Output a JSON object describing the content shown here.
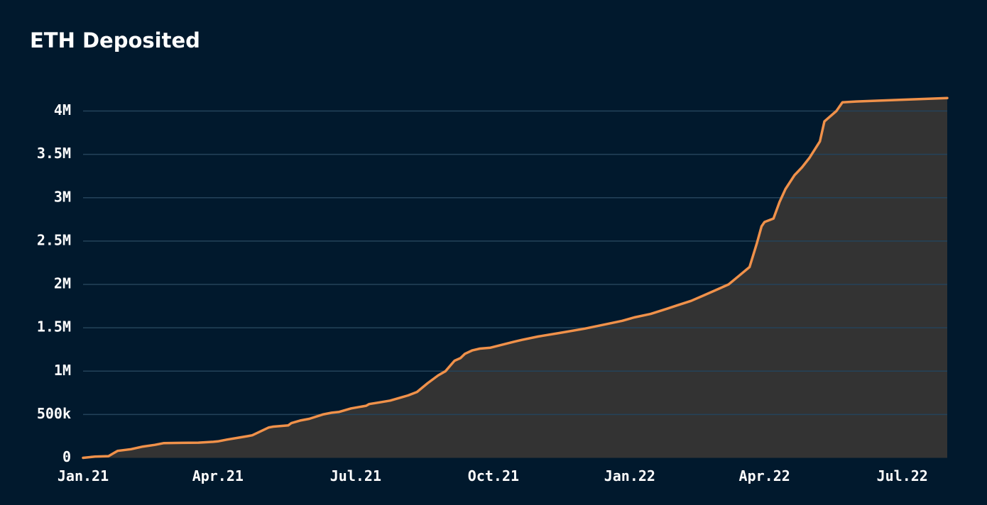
{
  "colors": {
    "background": "#01192d",
    "grid": "#24435a",
    "line": "#f0914a",
    "area": "#333333",
    "text": "#ffffff"
  },
  "chart_data": {
    "type": "area",
    "title": "ETH Deposited",
    "xlabel": "",
    "ylabel": "",
    "grid": true,
    "legend": "none",
    "xlim": [
      "2020-12-01",
      "2022-07-01"
    ],
    "ylim": [
      0,
      4000000
    ],
    "x_ticks": [
      {
        "date": "2020-12-01",
        "label": "Jan.21"
      },
      {
        "date": "2021-03-01",
        "label": "Apr.21"
      },
      {
        "date": "2021-06-01",
        "label": "Jul.21"
      },
      {
        "date": "2021-09-01",
        "label": "Oct.21"
      },
      {
        "date": "2021-12-01",
        "label": "Jan.22"
      },
      {
        "date": "2022-03-01",
        "label": "Apr.22"
      },
      {
        "date": "2022-06-01",
        "label": "Jul.22"
      }
    ],
    "y_ticks": [
      {
        "value": 0,
        "label": "0"
      },
      {
        "value": 500000,
        "label": "500k"
      },
      {
        "value": 1000000,
        "label": "1M"
      },
      {
        "value": 1500000,
        "label": "1.5M"
      },
      {
        "value": 2000000,
        "label": "2M"
      },
      {
        "value": 2500000,
        "label": "2.5M"
      },
      {
        "value": 3000000,
        "label": "3M"
      },
      {
        "value": 3500000,
        "label": "3.5M"
      },
      {
        "value": 4000000,
        "label": "4M"
      }
    ],
    "series": [
      {
        "x": [
          "2020-12-01",
          "2020-12-09",
          "2020-12-18",
          "2020-12-21",
          "2020-12-24",
          "2021-01-02",
          "2021-01-10",
          "2021-01-18",
          "2021-01-24",
          "2021-02-16",
          "2021-02-26",
          "2021-03-01",
          "2021-03-07",
          "2021-03-14",
          "2021-03-21",
          "2021-03-24",
          "2021-04-04",
          "2021-04-07",
          "2021-04-17",
          "2021-04-19",
          "2021-04-25",
          "2021-05-01",
          "2021-05-10",
          "2021-05-16",
          "2021-05-21",
          "2021-05-29",
          "2021-06-08",
          "2021-06-10",
          "2021-06-17",
          "2021-06-24",
          "2021-07-02",
          "2021-07-06",
          "2021-07-12",
          "2021-07-19",
          "2021-07-26",
          "2021-07-31",
          "2021-08-06",
          "2021-08-10",
          "2021-08-13",
          "2021-08-18",
          "2021-08-23",
          "2021-08-30",
          "2021-09-15",
          "2021-09-20",
          "2021-10-01",
          "2021-10-15",
          "2021-11-01",
          "2021-11-15",
          "2021-11-26",
          "2021-12-04",
          "2021-12-15",
          "2021-12-26",
          "2022-01-02",
          "2022-01-11",
          "2022-01-19",
          "2022-02-05",
          "2022-02-12",
          "2022-02-19",
          "2022-02-24",
          "2022-02-27",
          "2022-03-01",
          "2022-03-07",
          "2022-03-11",
          "2022-03-15",
          "2022-03-21",
          "2022-03-26",
          "2022-03-31",
          "2022-04-07",
          "2022-04-10",
          "2022-04-18",
          "2022-04-22",
          "2022-05-01",
          "2022-06-01",
          "2022-07-01"
        ],
        "y": [
          0,
          15000,
          20000,
          50000,
          80000,
          100000,
          130000,
          150000,
          170000,
          175000,
          185000,
          190000,
          210000,
          230000,
          250000,
          260000,
          350000,
          360000,
          375000,
          400000,
          430000,
          450000,
          500000,
          520000,
          530000,
          570000,
          600000,
          620000,
          640000,
          660000,
          700000,
          720000,
          760000,
          860000,
          950000,
          1000000,
          1120000,
          1150000,
          1200000,
          1240000,
          1260000,
          1270000,
          1340000,
          1360000,
          1400000,
          1440000,
          1490000,
          1540000,
          1580000,
          1620000,
          1660000,
          1720000,
          1760000,
          1810000,
          1870000,
          2000000,
          2100000,
          2200000,
          2480000,
          2670000,
          2720000,
          2760000,
          2950000,
          3100000,
          3260000,
          3350000,
          3460000,
          3650000,
          3880000,
          4000000,
          4100000,
          4110000,
          4130000,
          4150000
        ]
      }
    ]
  }
}
